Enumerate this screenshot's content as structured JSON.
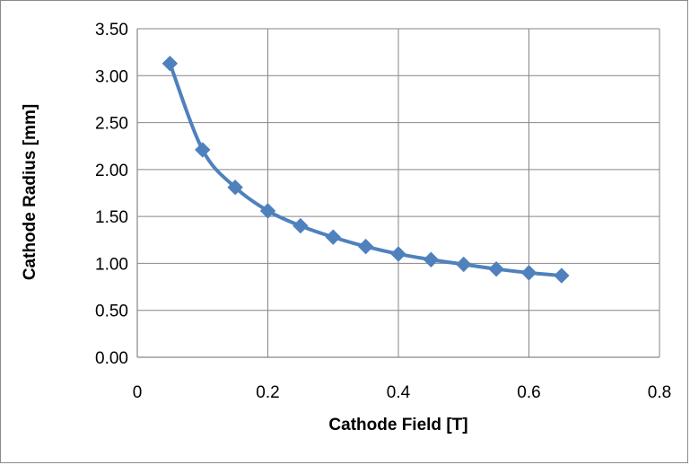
{
  "chart_data": {
    "type": "line",
    "title": "",
    "xlabel": "Cathode Field [T]",
    "ylabel": "Cathode Radius [mm]",
    "xlim": [
      0,
      0.8
    ],
    "ylim": [
      0,
      3.5
    ],
    "x_ticks": [
      "0",
      "0.2",
      "0.4",
      "0.6",
      "0.8"
    ],
    "y_ticks": [
      "0.00",
      "0.50",
      "1.00",
      "1.50",
      "2.00",
      "2.50",
      "3.00",
      "3.50"
    ],
    "grid": true,
    "legend": false,
    "marker": "diamond",
    "series": [
      {
        "color": "#4f81bd",
        "x": [
          0.05,
          0.1,
          0.15,
          0.2,
          0.25,
          0.3,
          0.35,
          0.4,
          0.45,
          0.5,
          0.55,
          0.6,
          0.65
        ],
        "y": [
          3.13,
          2.21,
          1.81,
          1.56,
          1.4,
          1.28,
          1.18,
          1.1,
          1.04,
          0.99,
          0.94,
          0.9,
          0.87
        ]
      }
    ]
  }
}
